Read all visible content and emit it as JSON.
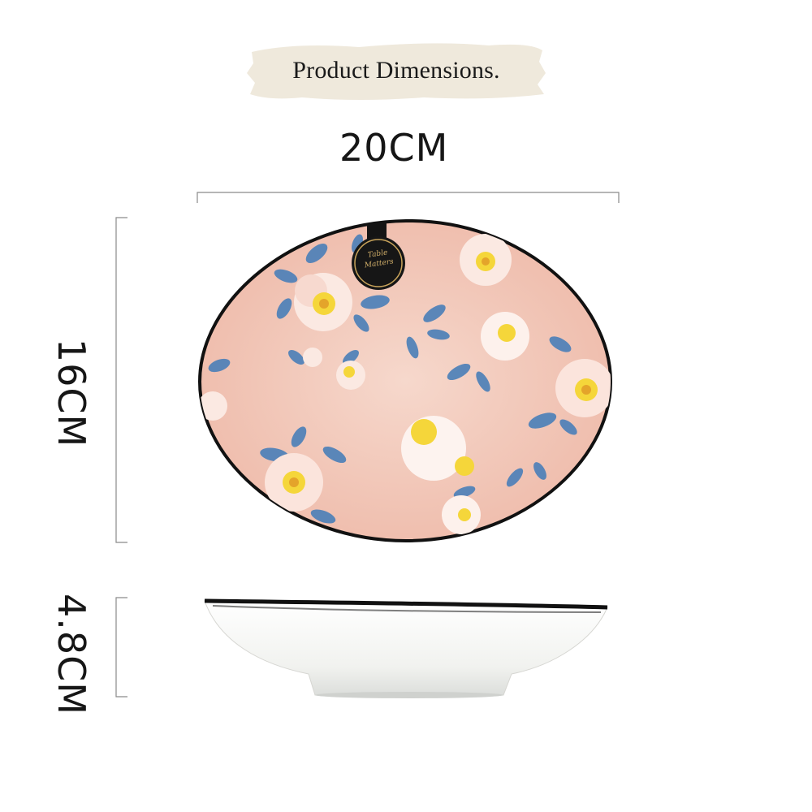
{
  "banner": {
    "title": "Product Dimensions."
  },
  "dimensions": {
    "width": "20CM",
    "height": "16CM",
    "depth": "4.8CM"
  },
  "brand": {
    "logo_text": "Table Matters"
  },
  "colors": {
    "banner_bg": "#efe9dc",
    "plate_pink": "#f2c9bb",
    "plate_rim": "#111111",
    "leaf_blue": "#4a7fb8",
    "flower_yellow": "#f5d63a",
    "bowl_white": "#f7f7f5"
  }
}
